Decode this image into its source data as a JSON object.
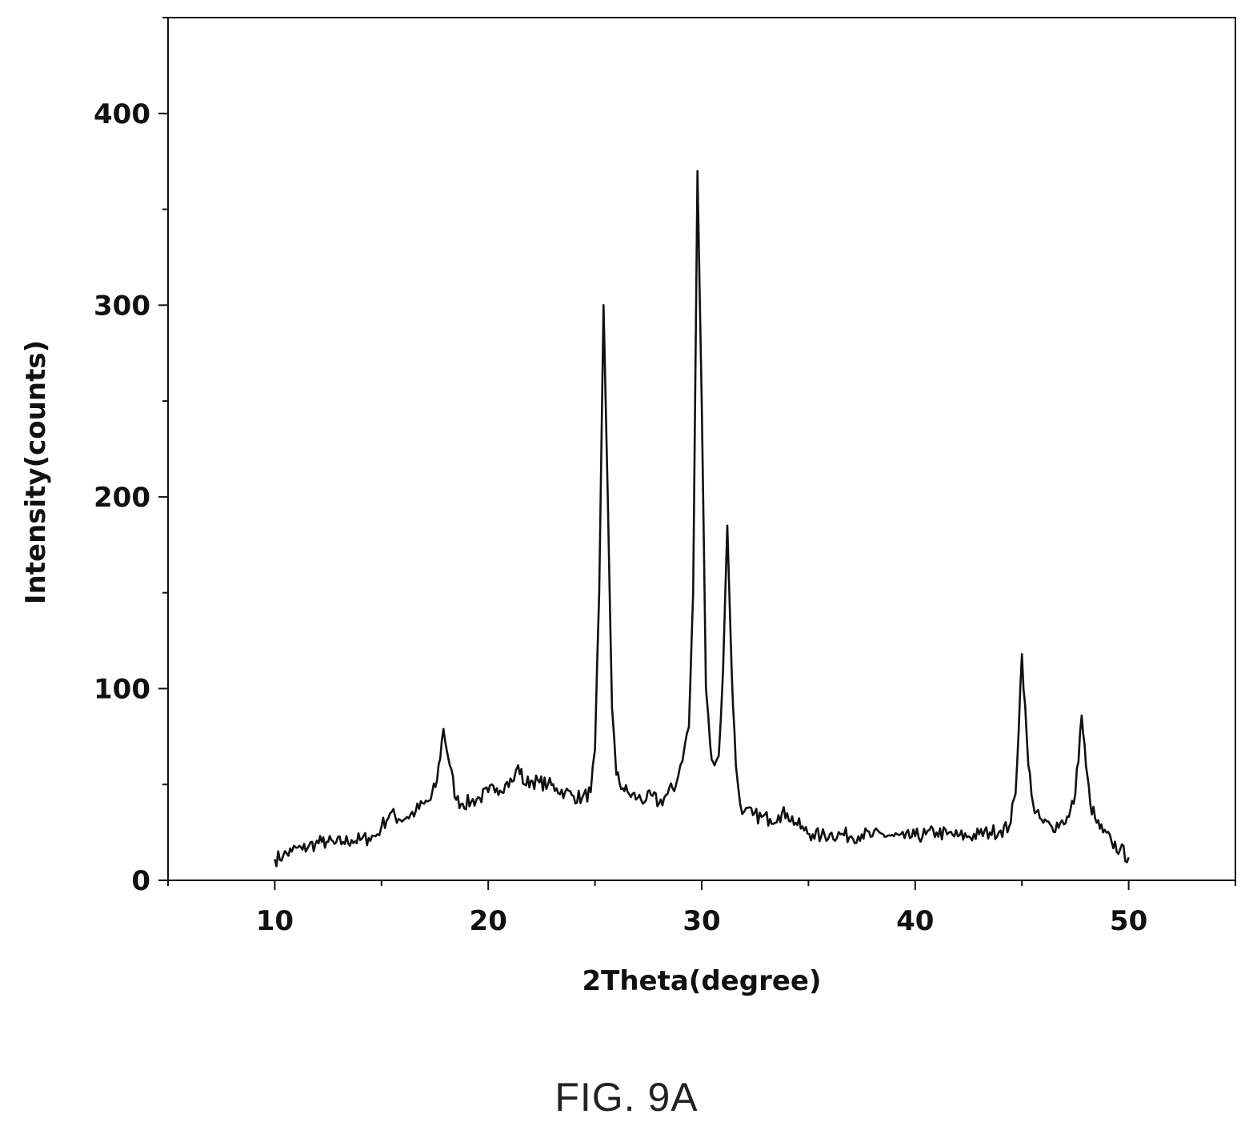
{
  "figure_label": "FIG. 9A",
  "chart_data": {
    "type": "line",
    "title": "",
    "xlabel": "2Theta(degree)",
    "ylabel": "Intensity(counts)",
    "xlim": [
      5,
      55
    ],
    "ylim": [
      0,
      450
    ],
    "x_ticks": [
      10,
      20,
      30,
      40,
      50
    ],
    "y_ticks": [
      0,
      100,
      200,
      300,
      400
    ],
    "grid": false,
    "legend": "none",
    "line_color": "#111111",
    "series": [
      {
        "x": [
          10.0,
          10.4,
          10.8,
          11.0,
          11.3,
          11.6,
          11.9,
          12.2,
          12.5,
          12.8,
          13.2,
          13.6,
          14.0,
          14.4,
          14.8,
          15.0,
          15.4,
          15.8,
          16.2,
          16.6,
          17.0,
          17.3,
          17.6,
          17.9,
          18.2,
          18.5,
          18.8,
          19.2,
          19.6,
          20.0,
          20.4,
          20.8,
          21.2,
          21.4,
          21.7,
          22.0,
          22.4,
          22.8,
          23.2,
          23.6,
          24.0,
          24.4,
          24.8,
          25.0,
          25.2,
          25.4,
          25.6,
          25.8,
          26.0,
          26.3,
          26.6,
          27.0,
          27.4,
          27.7,
          28.0,
          28.4,
          28.8,
          29.0,
          29.2,
          29.4,
          29.6,
          29.8,
          30.0,
          30.2,
          30.4,
          30.6,
          30.8,
          31.0,
          31.2,
          31.4,
          31.6,
          31.8,
          32.0,
          32.4,
          32.8,
          33.2,
          33.6,
          34.0,
          34.4,
          34.8,
          35.2,
          35.6,
          36.0,
          36.5,
          37.0,
          37.5,
          38.0,
          38.5,
          39.0,
          39.5,
          40.0,
          40.5,
          41.0,
          41.5,
          42.0,
          42.5,
          43.0,
          43.5,
          44.0,
          44.4,
          44.7,
          45.0,
          45.3,
          45.6,
          46.0,
          46.4,
          46.8,
          47.2,
          47.5,
          47.8,
          48.0,
          48.2,
          48.5,
          48.8,
          49.2,
          49.6,
          50.0
        ],
        "y": [
          11,
          13,
          15,
          17,
          16,
          18,
          19,
          20,
          20,
          19,
          20,
          21,
          21,
          22,
          24,
          28,
          35,
          32,
          33,
          36,
          40,
          42,
          52,
          79,
          60,
          42,
          40,
          41,
          43,
          46,
          48,
          50,
          52,
          60,
          50,
          52,
          51,
          50,
          48,
          46,
          44,
          43,
          46,
          68,
          150,
          300,
          200,
          90,
          55,
          48,
          45,
          43,
          42,
          44,
          40,
          45,
          50,
          60,
          70,
          80,
          150,
          370,
          250,
          100,
          70,
          60,
          65,
          110,
          185,
          110,
          60,
          40,
          36,
          34,
          33,
          32,
          34,
          35,
          30,
          26,
          24,
          23,
          24,
          24,
          23,
          24,
          23,
          24,
          23,
          22,
          23,
          24,
          25,
          24,
          23,
          23,
          24,
          25,
          26,
          28,
          45,
          118,
          60,
          35,
          30,
          28,
          30,
          33,
          45,
          86,
          60,
          40,
          30,
          25,
          20,
          16,
          12
        ]
      }
    ]
  }
}
